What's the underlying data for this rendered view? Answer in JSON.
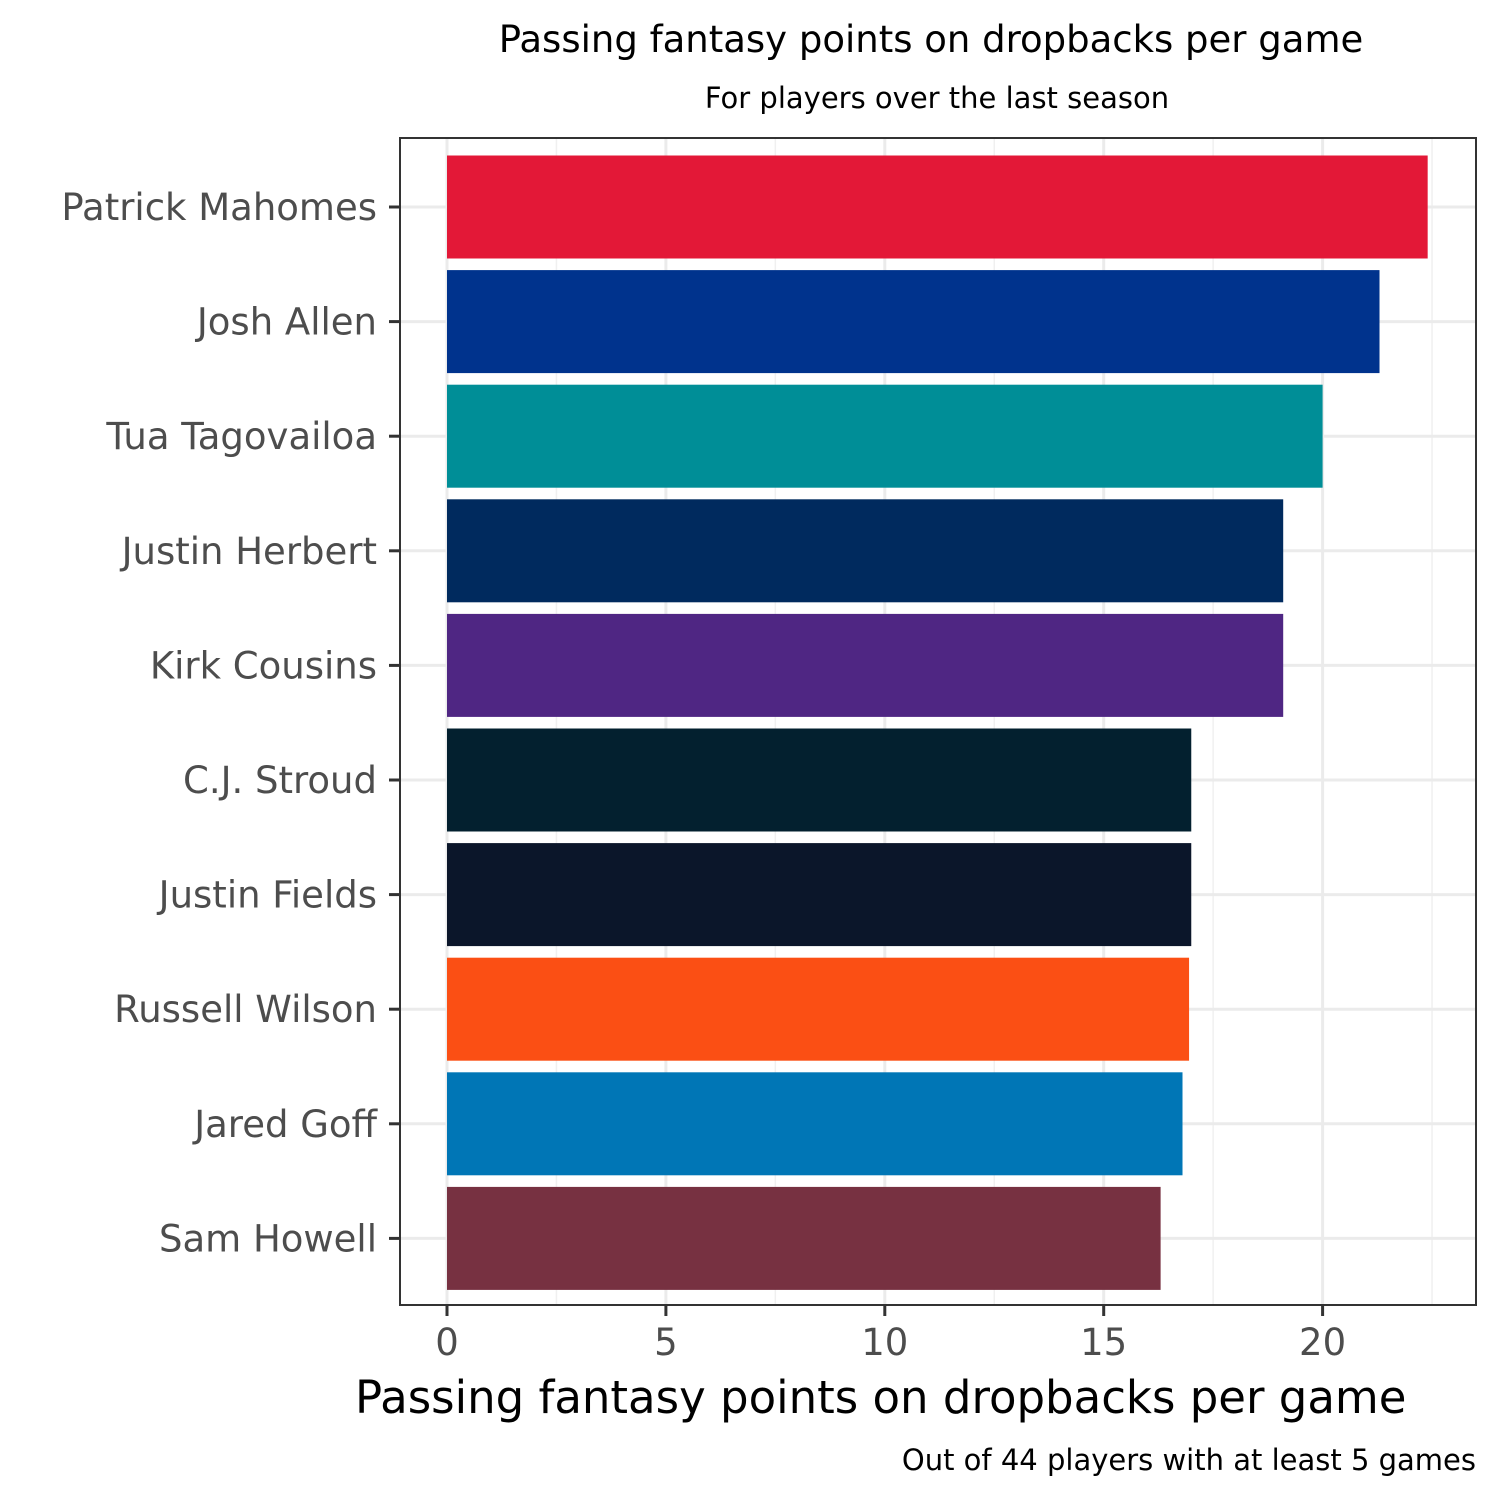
{
  "chart_data": {
    "type": "bar",
    "orientation": "horizontal",
    "title": "Passing fantasy points on dropbacks per game",
    "subtitle": "For players over the last season",
    "xlabel": "Passing fantasy points on dropbacks per game",
    "caption": "Out of 44 players with at least 5 games",
    "xlim": [
      -1.1,
      23.5
    ],
    "xticks": [
      0,
      5,
      10,
      15,
      20
    ],
    "xtick_labels": [
      "0",
      "5",
      "10",
      "15",
      "20"
    ],
    "grid": true,
    "categories": [
      "Patrick Mahomes",
      "Josh Allen",
      "Tua Tagovailoa",
      "Justin Herbert",
      "Kirk Cousins",
      "C.J. Stroud",
      "Justin Fields",
      "Russell Wilson",
      "Jared Goff",
      "Sam Howell"
    ],
    "values": [
      22.4,
      21.3,
      20.0,
      19.1,
      19.1,
      17.0,
      17.0,
      16.95,
      16.8,
      16.3
    ],
    "colors": [
      "#e31837",
      "#00338d",
      "#008e97",
      "#002a5e",
      "#4f2683",
      "#03202f",
      "#0b162a",
      "#fb4f14",
      "#0076b6",
      "#773141"
    ]
  }
}
